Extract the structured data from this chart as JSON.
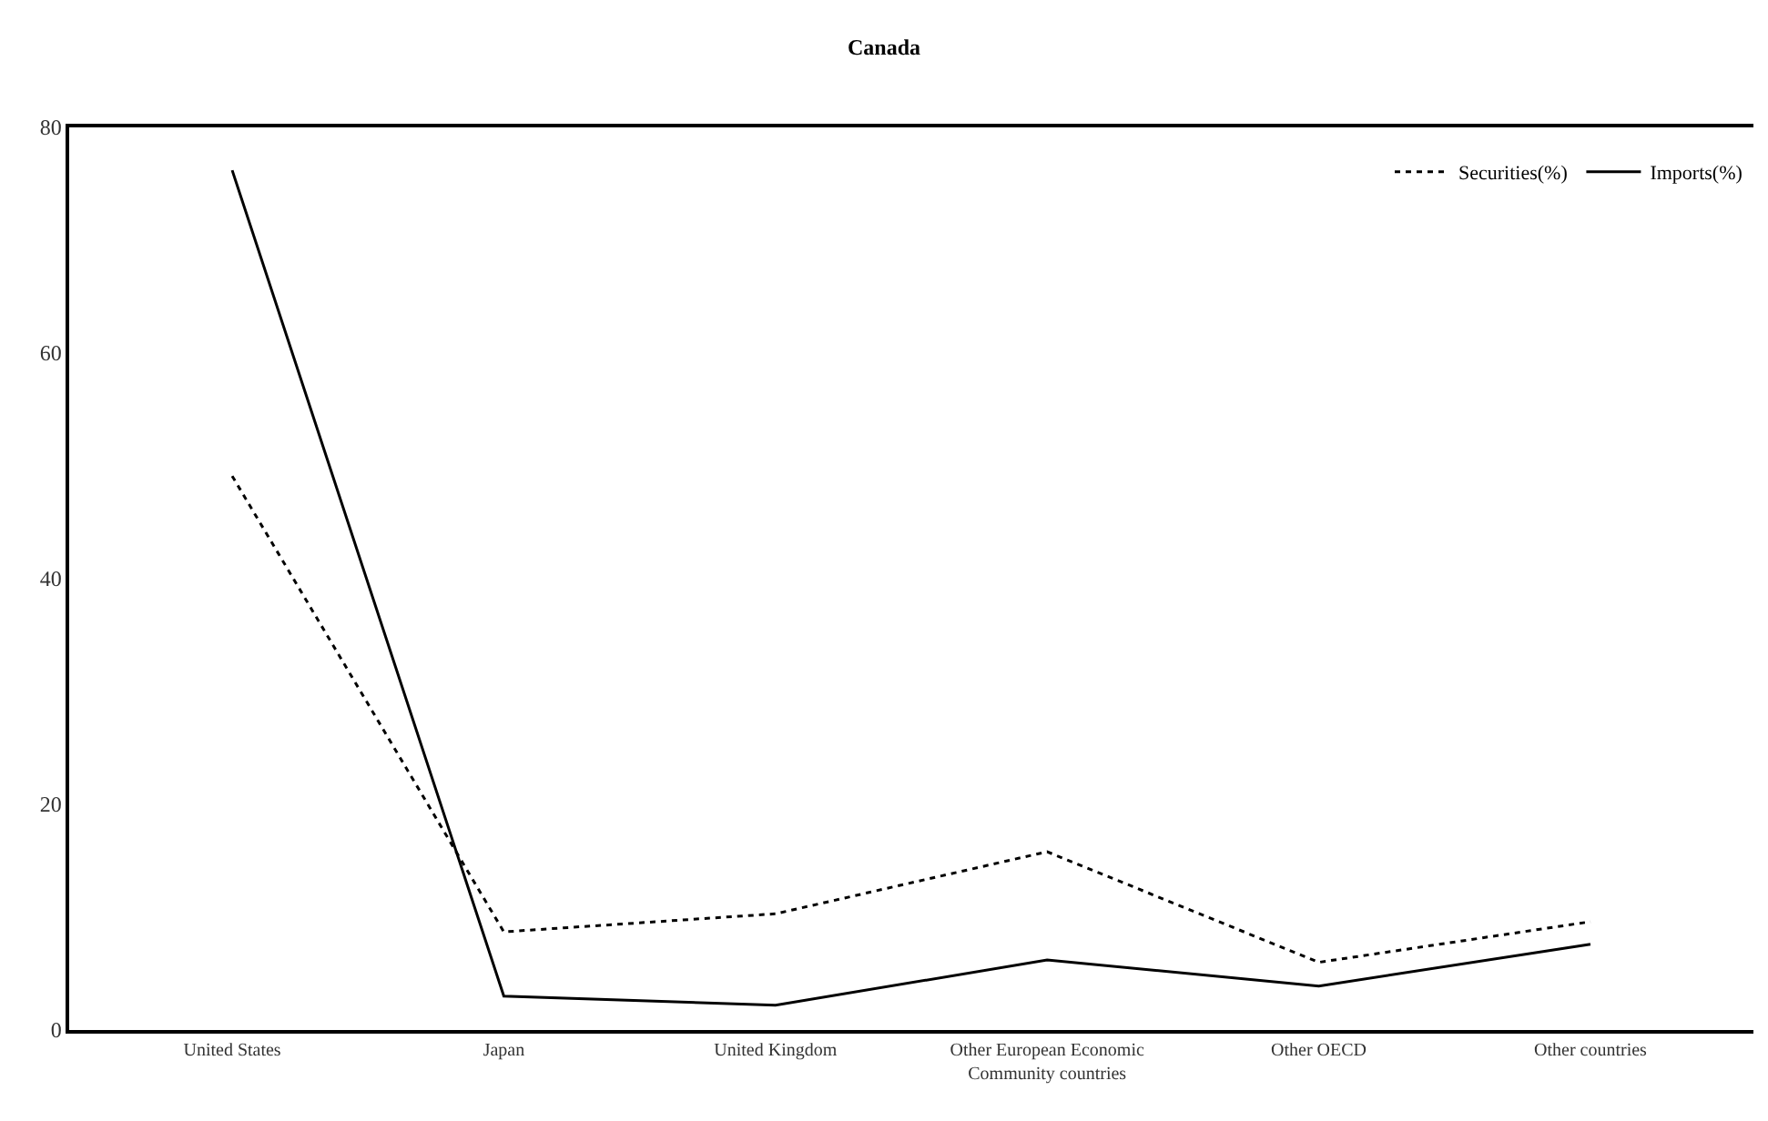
{
  "chart_data": {
    "type": "line",
    "title": "Canada",
    "categories": [
      "United States",
      "Japan",
      "United Kingdom",
      "Other European Economic Community countries",
      "Other OECD",
      "Other countries"
    ],
    "series": [
      {
        "name": "Securities(%)",
        "color": "#000000",
        "line_style": "dotted",
        "values": [
          49.1,
          8.7,
          10.3,
          15.8,
          6.0,
          9.6
        ]
      },
      {
        "name": "Imports(%)",
        "color": "#000000",
        "line_style": "solid",
        "values": [
          76.2,
          3.0,
          2.2,
          6.2,
          3.9,
          7.6
        ]
      }
    ],
    "ylim": [
      0,
      80
    ],
    "yticks": [
      0,
      20,
      40,
      60,
      80
    ],
    "grid": false,
    "legend": "top right",
    "marker": "none"
  }
}
